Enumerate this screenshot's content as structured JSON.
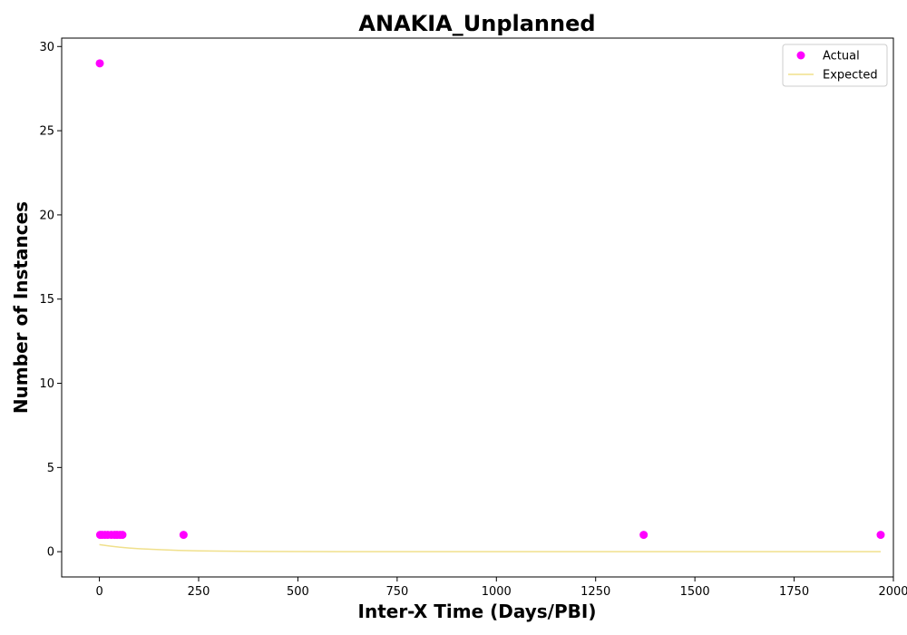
{
  "chart_data": {
    "type": "scatter",
    "title": "ANAKIA_Unplanned",
    "xlabel": "Inter-X Time (Days/PBI)",
    "ylabel": "Number of Instances",
    "xlim": [
      -95,
      2000
    ],
    "ylim": [
      -1.5,
      30.5
    ],
    "xticks": [
      0,
      250,
      500,
      750,
      1000,
      1250,
      1500,
      1750,
      2000
    ],
    "yticks": [
      0,
      5,
      10,
      15,
      20,
      25,
      30
    ],
    "grid": false,
    "legend_position": "top-right",
    "series": [
      {
        "name": "Actual",
        "kind": "scatter",
        "color": "#ff00ff",
        "points": [
          {
            "x": 1,
            "y": 29
          },
          {
            "x": 2,
            "y": 1
          },
          {
            "x": 7,
            "y": 1
          },
          {
            "x": 14,
            "y": 1
          },
          {
            "x": 21,
            "y": 1
          },
          {
            "x": 30,
            "y": 1
          },
          {
            "x": 38,
            "y": 1
          },
          {
            "x": 45,
            "y": 1
          },
          {
            "x": 52,
            "y": 1
          },
          {
            "x": 58,
            "y": 1
          },
          {
            "x": 212,
            "y": 1
          },
          {
            "x": 1371,
            "y": 1
          },
          {
            "x": 1968,
            "y": 1
          }
        ]
      },
      {
        "name": "Expected",
        "kind": "line",
        "color": "#f0e08c",
        "points": [
          {
            "x": 0,
            "y": 0.42
          },
          {
            "x": 25,
            "y": 0.34
          },
          {
            "x": 50,
            "y": 0.27
          },
          {
            "x": 75,
            "y": 0.22
          },
          {
            "x": 100,
            "y": 0.18
          },
          {
            "x": 150,
            "y": 0.12
          },
          {
            "x": 200,
            "y": 0.075
          },
          {
            "x": 250,
            "y": 0.05
          },
          {
            "x": 300,
            "y": 0.032
          },
          {
            "x": 400,
            "y": 0.014
          },
          {
            "x": 500,
            "y": 0.006
          },
          {
            "x": 750,
            "y": 0.001
          },
          {
            "x": 1000,
            "y": 0
          },
          {
            "x": 1500,
            "y": 0
          },
          {
            "x": 1968,
            "y": 0
          }
        ]
      }
    ]
  }
}
